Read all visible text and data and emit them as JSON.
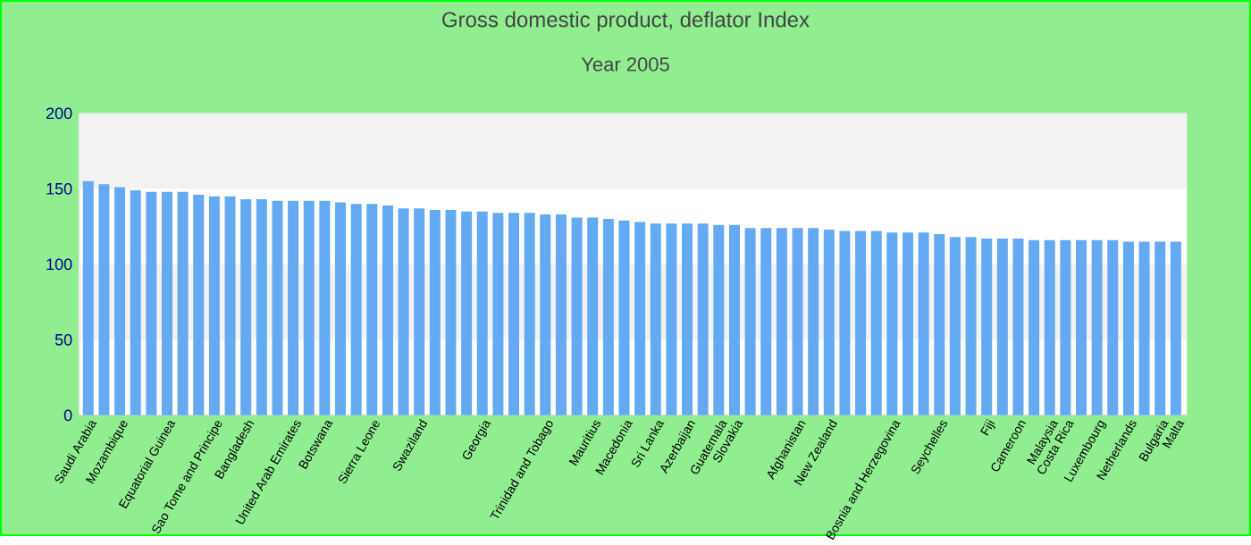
{
  "chart_data": {
    "type": "bar",
    "title": "Gross domestic product, deflator  Index",
    "subtitle": "Year 2005",
    "categories": [
      "Saudi Arabia",
      null,
      "Mozambique",
      null,
      null,
      "Equatorial Guinea",
      null,
      null,
      "Sao Tome and Principe",
      null,
      "Bangladesh",
      null,
      null,
      "United Arab Emirates",
      null,
      "Botswana",
      null,
      null,
      "Sierra Leone",
      null,
      null,
      "Swaziland",
      null,
      null,
      null,
      "Georgia",
      null,
      null,
      null,
      "Trinidad and Tobago",
      null,
      null,
      "Mauritius",
      null,
      "Macedonia",
      null,
      "Sri Lanka",
      null,
      "Azerbaijan",
      null,
      "Guatemala",
      "Slovakia",
      null,
      null,
      null,
      "Afghanistan",
      null,
      "New Zealand",
      null,
      null,
      null,
      "Bosnia and Herzegovina",
      null,
      null,
      "Seychelles",
      null,
      null,
      "Fiji",
      null,
      "Cameroon",
      null,
      "Malaysia",
      "Costa Rica",
      null,
      "Luxembourg",
      null,
      "Netherlands",
      null,
      "Bulgaria",
      "Malta"
    ],
    "values": [
      155,
      153,
      151,
      149,
      148,
      148,
      148,
      146,
      145,
      145,
      143,
      143,
      142,
      142,
      142,
      142,
      141,
      140,
      140,
      139,
      137,
      137,
      136,
      136,
      135,
      135,
      134,
      134,
      134,
      133,
      133,
      131,
      131,
      130,
      129,
      128,
      127,
      127,
      127,
      127,
      126,
      126,
      124,
      124,
      124,
      124,
      124,
      123,
      122,
      122,
      122,
      121,
      121,
      121,
      120,
      118,
      118,
      117,
      117,
      117,
      116,
      116,
      116,
      116,
      116,
      116,
      115,
      115,
      115,
      115
    ],
    "color": "#63aaf2",
    "ylim": [
      0,
      200
    ],
    "yticks": [
      0,
      50,
      100,
      150,
      200
    ]
  }
}
